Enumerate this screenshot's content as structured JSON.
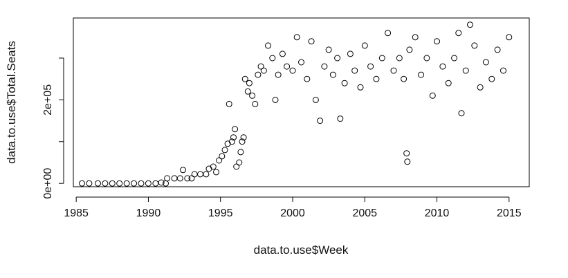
{
  "chart_data": {
    "type": "scatter",
    "title": "",
    "xlabel": "data.to.use$Week",
    "ylabel": "data.to.use$Total.Seats",
    "xlim": [
      1984.8,
      2016.4
    ],
    "ylim": [
      -8000,
      396000
    ],
    "x_ticks": [
      1985,
      1990,
      1995,
      2000,
      2005,
      2010,
      2015
    ],
    "x_tick_labels": [
      "1985",
      "1990",
      "1995",
      "2000",
      "2005",
      "2010",
      "2015"
    ],
    "y_ticks": [
      0,
      100000,
      200000,
      300000
    ],
    "y_tick_labels": [
      "0e+00",
      "2e+05"
    ],
    "y_labeled_ticks": [
      0,
      200000
    ],
    "grid": false,
    "legend": "none",
    "marker": "open circle",
    "series": [
      {
        "values": [
          [
            1985.4,
            0
          ],
          [
            1985.9,
            0
          ],
          [
            1986.5,
            0
          ],
          [
            1987.0,
            0
          ],
          [
            1987.5,
            0
          ],
          [
            1988.0,
            0
          ],
          [
            1988.5,
            0
          ],
          [
            1989.0,
            0
          ],
          [
            1989.5,
            0
          ],
          [
            1990.0,
            0
          ],
          [
            1990.5,
            0
          ],
          [
            1990.9,
            2000
          ],
          [
            1991.2,
            0
          ],
          [
            1991.3,
            12000
          ],
          [
            1991.8,
            12000
          ],
          [
            1992.2,
            12000
          ],
          [
            1992.4,
            32000
          ],
          [
            1992.7,
            12000
          ],
          [
            1993.0,
            12000
          ],
          [
            1993.2,
            22000
          ],
          [
            1993.6,
            22000
          ],
          [
            1994.0,
            22000
          ],
          [
            1994.2,
            35000
          ],
          [
            1994.5,
            40000
          ],
          [
            1994.7,
            27000
          ],
          [
            1994.9,
            55000
          ],
          [
            1995.1,
            65000
          ],
          [
            1995.3,
            80000
          ],
          [
            1995.5,
            95000
          ],
          [
            1995.6,
            190000
          ],
          [
            1995.8,
            100000
          ],
          [
            1995.9,
            110000
          ],
          [
            1996.0,
            130000
          ],
          [
            1996.1,
            40000
          ],
          [
            1996.3,
            50000
          ],
          [
            1996.4,
            75000
          ],
          [
            1996.5,
            100000
          ],
          [
            1996.6,
            110000
          ],
          [
            1996.7,
            250000
          ],
          [
            1996.9,
            220000
          ],
          [
            1997.0,
            240000
          ],
          [
            1997.2,
            210000
          ],
          [
            1997.4,
            190000
          ],
          [
            1997.6,
            260000
          ],
          [
            1997.8,
            280000
          ],
          [
            1998.0,
            270000
          ],
          [
            1998.3,
            330000
          ],
          [
            1998.6,
            300000
          ],
          [
            1998.8,
            200000
          ],
          [
            1999.0,
            260000
          ],
          [
            1999.3,
            310000
          ],
          [
            1999.6,
            280000
          ],
          [
            2000.0,
            270000
          ],
          [
            2000.3,
            350000
          ],
          [
            2000.6,
            290000
          ],
          [
            2001.0,
            250000
          ],
          [
            2001.3,
            340000
          ],
          [
            2001.6,
            200000
          ],
          [
            2001.9,
            150000
          ],
          [
            2002.2,
            280000
          ],
          [
            2002.5,
            320000
          ],
          [
            2002.8,
            260000
          ],
          [
            2003.1,
            300000
          ],
          [
            2003.3,
            155000
          ],
          [
            2003.6,
            240000
          ],
          [
            2004.0,
            310000
          ],
          [
            2004.3,
            270000
          ],
          [
            2004.7,
            230000
          ],
          [
            2005.0,
            330000
          ],
          [
            2005.4,
            280000
          ],
          [
            2005.8,
            250000
          ],
          [
            2006.2,
            300000
          ],
          [
            2006.6,
            360000
          ],
          [
            2007.0,
            270000
          ],
          [
            2007.4,
            300000
          ],
          [
            2007.7,
            250000
          ],
          [
            2007.9,
            72000
          ],
          [
            2007.95,
            52000
          ],
          [
            2008.1,
            320000
          ],
          [
            2008.5,
            350000
          ],
          [
            2008.9,
            260000
          ],
          [
            2009.3,
            300000
          ],
          [
            2009.7,
            210000
          ],
          [
            2010.0,
            340000
          ],
          [
            2010.4,
            280000
          ],
          [
            2010.8,
            240000
          ],
          [
            2011.2,
            300000
          ],
          [
            2011.5,
            360000
          ],
          [
            2011.7,
            168000
          ],
          [
            2012.0,
            270000
          ],
          [
            2012.3,
            380000
          ],
          [
            2012.6,
            330000
          ],
          [
            2013.0,
            230000
          ],
          [
            2013.4,
            290000
          ],
          [
            2013.8,
            250000
          ],
          [
            2014.2,
            320000
          ],
          [
            2014.6,
            270000
          ],
          [
            2015.0,
            350000
          ]
        ]
      }
    ]
  }
}
